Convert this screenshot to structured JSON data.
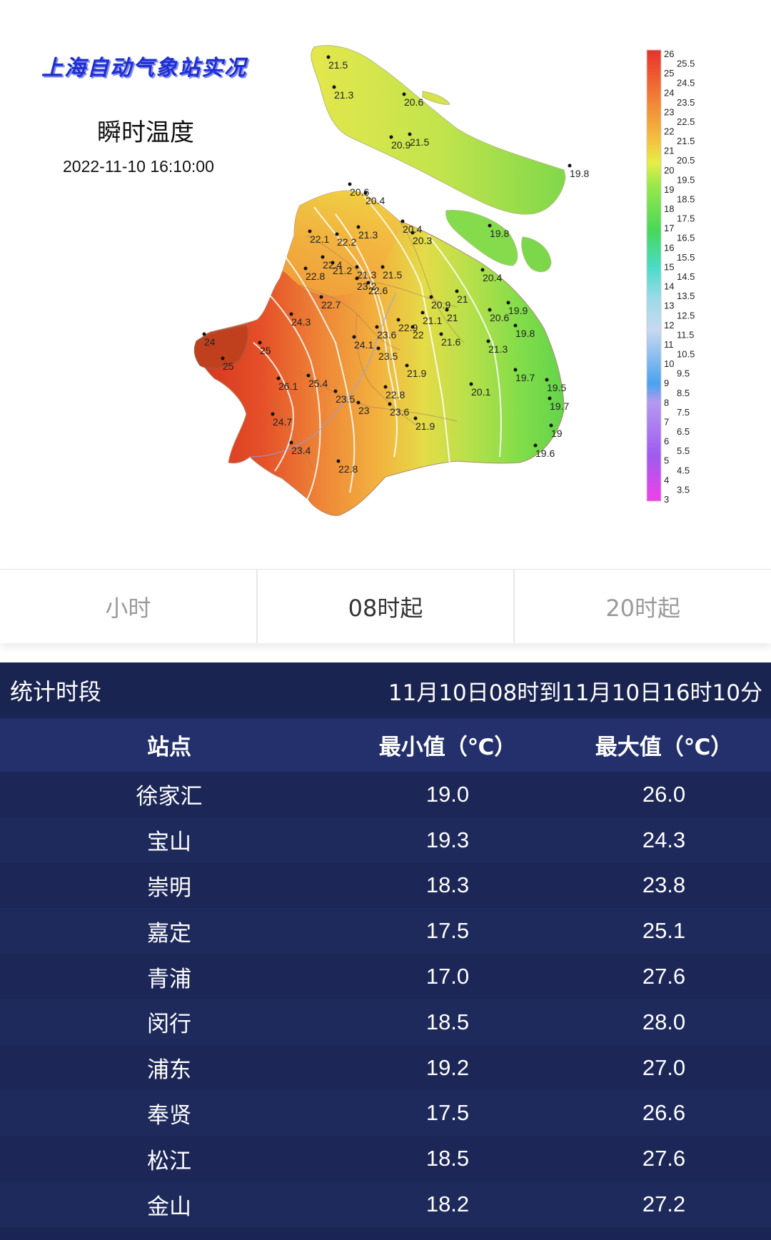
{
  "map": {
    "title": "上海自动气象站实况",
    "subtitle": "瞬时温度",
    "datetime": "2022-11-10 16:10:00",
    "stations": [
      {
        "label": "21.5"
      },
      {
        "label": "21.3"
      },
      {
        "label": "20.6"
      },
      {
        "label": "20.9"
      },
      {
        "label": "21.5"
      },
      {
        "label": "19.8"
      },
      {
        "label": "20.6"
      },
      {
        "label": "20.4"
      },
      {
        "label": "21.3"
      },
      {
        "label": "20.4"
      },
      {
        "label": "20.3"
      },
      {
        "label": "19.8"
      },
      {
        "label": "22.1"
      },
      {
        "label": "22.2"
      },
      {
        "label": "22.4"
      },
      {
        "label": "21.2"
      },
      {
        "label": "21.3"
      },
      {
        "label": "21.5"
      },
      {
        "label": "22.8"
      },
      {
        "label": "23.2"
      },
      {
        "label": "22.6"
      },
      {
        "label": "20.4"
      },
      {
        "label": "22.7"
      },
      {
        "label": "20.9"
      },
      {
        "label": "21"
      },
      {
        "label": "20.6"
      },
      {
        "label": "19.9"
      },
      {
        "label": "21.1"
      },
      {
        "label": "21"
      },
      {
        "label": "24.3"
      },
      {
        "label": "22.9"
      },
      {
        "label": "22"
      },
      {
        "label": "23.6"
      },
      {
        "label": "19.8"
      },
      {
        "label": "24"
      },
      {
        "label": "24.1"
      },
      {
        "label": "21.6"
      },
      {
        "label": "25"
      },
      {
        "label": "21.3"
      },
      {
        "label": "23.5"
      },
      {
        "label": "25"
      },
      {
        "label": "21.9"
      },
      {
        "label": "19.7"
      },
      {
        "label": "26.1"
      },
      {
        "label": "25.4"
      },
      {
        "label": "19.5"
      },
      {
        "label": "20.1"
      },
      {
        "label": "22.8"
      },
      {
        "label": "23.5"
      },
      {
        "label": "19.7"
      },
      {
        "label": "23"
      },
      {
        "label": "23.6"
      },
      {
        "label": "24.7"
      },
      {
        "label": "21.9"
      },
      {
        "label": "19"
      },
      {
        "label": "23.4"
      },
      {
        "label": "19.6"
      },
      {
        "label": "22.8"
      }
    ],
    "color_scale": {
      "min": 3,
      "max": 26,
      "ticks": [
        "26",
        "25.5",
        "25",
        "24.5",
        "24",
        "23.5",
        "23",
        "22.5",
        "22",
        "21.5",
        "21",
        "20.5",
        "20",
        "19.5",
        "19",
        "18.5",
        "18",
        "17.5",
        "17",
        "16.5",
        "16",
        "15.5",
        "15",
        "14.5",
        "14",
        "13.5",
        "13",
        "12.5",
        "12",
        "11.5",
        "11",
        "10.5",
        "10",
        "9.5",
        "9",
        "8.5",
        "8",
        "7.5",
        "7",
        "6.5",
        "6",
        "5.5",
        "5",
        "4.5",
        "4",
        "3.5",
        "3"
      ]
    }
  },
  "tabs": [
    {
      "label": "小时",
      "active": false
    },
    {
      "label": "08时起",
      "active": true
    },
    {
      "label": "20时起",
      "active": false
    }
  ],
  "stats": {
    "period_label": "统计时段",
    "period_value": "11月10日08时到11月10日16时10分",
    "headers": [
      "站点",
      "最小值（℃）",
      "最大值（℃）"
    ],
    "rows": [
      {
        "station": "徐家汇",
        "min": "19.0",
        "max": "26.0"
      },
      {
        "station": "宝山",
        "min": "19.3",
        "max": "24.3"
      },
      {
        "station": "崇明",
        "min": "18.3",
        "max": "23.8"
      },
      {
        "station": "嘉定",
        "min": "17.5",
        "max": "25.1"
      },
      {
        "station": "青浦",
        "min": "17.0",
        "max": "27.6"
      },
      {
        "station": "闵行",
        "min": "18.5",
        "max": "28.0"
      },
      {
        "station": "浦东",
        "min": "19.2",
        "max": "27.0"
      },
      {
        "station": "奉贤",
        "min": "17.5",
        "max": "26.6"
      },
      {
        "station": "松江",
        "min": "18.5",
        "max": "27.6"
      },
      {
        "station": "金山",
        "min": "18.2",
        "max": "27.2"
      }
    ]
  }
}
